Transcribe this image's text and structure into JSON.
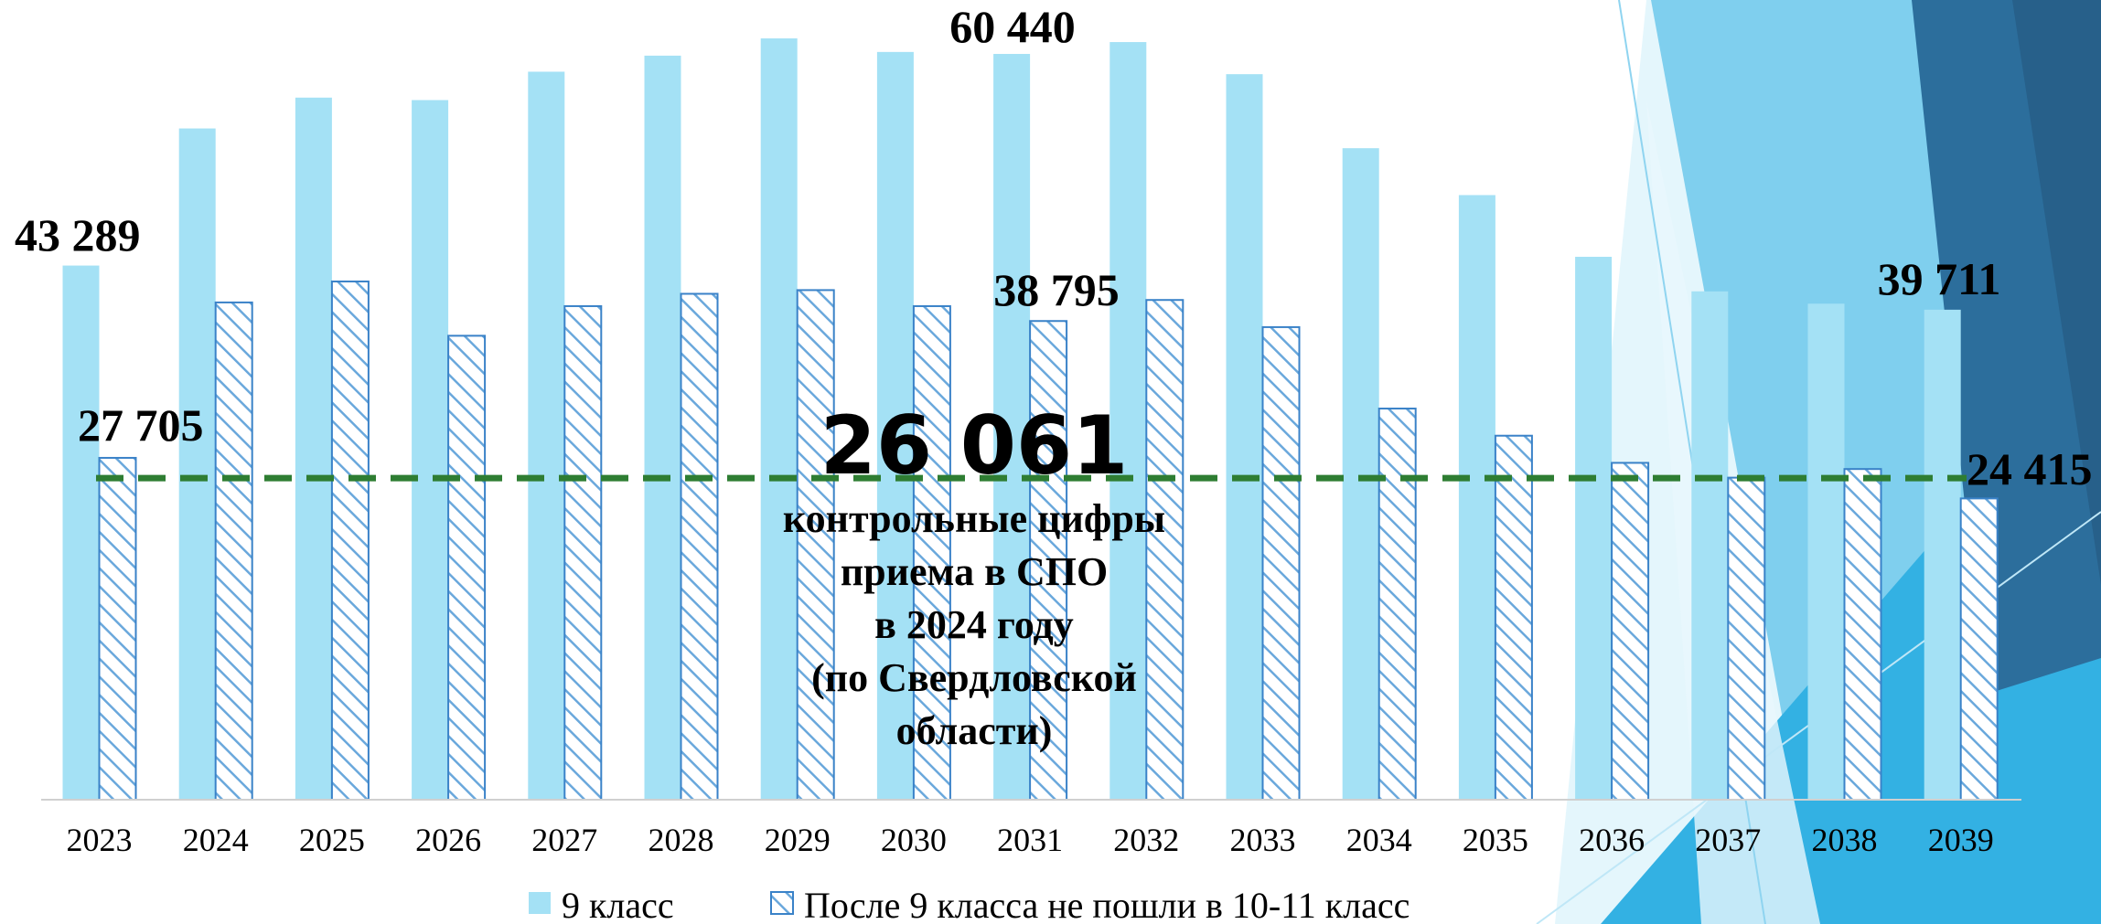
{
  "colors": {
    "series_9": "#a4e1f5",
    "series_after9_stroke": "#3a82c8",
    "series_after9_fill": "#ffffff",
    "reference_line": "#2e7d32",
    "decor_light": "#cdeef9",
    "decor_mid": "#7fcfee",
    "decor_blue": "#33b1e3",
    "decor_dark": "#2c6e9c",
    "decor_navy": "#27608a"
  },
  "chart_data": {
    "type": "bar",
    "categories": [
      "2023",
      "2024",
      "2025",
      "2026",
      "2027",
      "2028",
      "2029",
      "2030",
      "2031",
      "2032",
      "2033",
      "2034",
      "2035",
      "2036",
      "2037",
      "2038",
      "2039"
    ],
    "series": [
      {
        "name": "9 класс",
        "values": [
          43289,
          54400,
          56900,
          56700,
          59000,
          60300,
          61700,
          60600,
          60440,
          61400,
          58800,
          52800,
          49000,
          44000,
          41200,
          40200,
          39711
        ]
      },
      {
        "name": "После 9 класса не пошли в 10-11 класс",
        "values": [
          27705,
          40300,
          42000,
          37600,
          40000,
          41000,
          41300,
          40000,
          38795,
          40500,
          38300,
          31700,
          29500,
          27300,
          26100,
          26800,
          24415
        ]
      }
    ],
    "data_labels": [
      {
        "series": 0,
        "category": "2023",
        "text": "43 289"
      },
      {
        "series": 1,
        "category": "2023",
        "text": "27 705"
      },
      {
        "series": 0,
        "category": "2031",
        "text": "60 440"
      },
      {
        "series": 1,
        "category": "2031",
        "text": "38 795"
      },
      {
        "series": 0,
        "category": "2039",
        "text": "39 711"
      },
      {
        "series": 1,
        "category": "2039",
        "text": "24 415"
      }
    ],
    "reference_line": {
      "value": 26061,
      "label": "26 061",
      "caption": [
        "контрольные цифры",
        "приема в СПО",
        "в 2024 году",
        "(по Свердловской",
        "области)"
      ]
    },
    "ylim": [
      0,
      66000
    ],
    "grid": false,
    "legend_position": "bottom"
  }
}
